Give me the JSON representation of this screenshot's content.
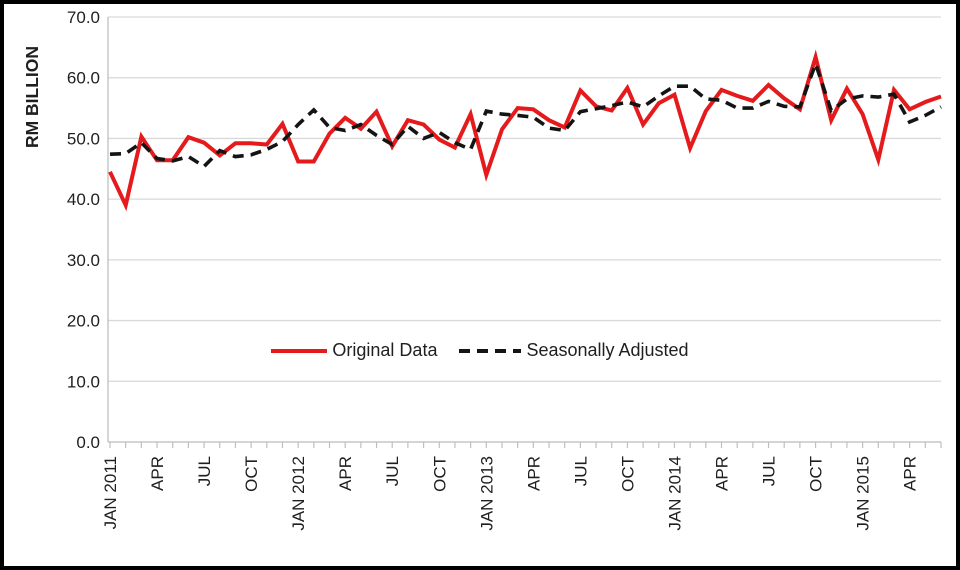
{
  "chart_data": {
    "type": "line",
    "title": "",
    "ylabel": "RM BILLION",
    "xlabel": "",
    "ylim": [
      0,
      70
    ],
    "y_tick_step": 10,
    "y_tick_labels": [
      "0.0",
      "10.0",
      "20.0",
      "30.0",
      "40.0",
      "50.0",
      "60.0",
      "70.0"
    ],
    "n_points": 54,
    "x_start": "JAN 2011",
    "x_end": "JUN 2015",
    "x_tick_labels": [
      {
        "month_index": 0,
        "label": "JAN 2011"
      },
      {
        "month_index": 3,
        "label": "APR"
      },
      {
        "month_index": 6,
        "label": "JUL"
      },
      {
        "month_index": 9,
        "label": "OCT"
      },
      {
        "month_index": 12,
        "label": "JAN 2012"
      },
      {
        "month_index": 15,
        "label": "APR"
      },
      {
        "month_index": 18,
        "label": "JUL"
      },
      {
        "month_index": 21,
        "label": "OCT"
      },
      {
        "month_index": 24,
        "label": "JAN 2013"
      },
      {
        "month_index": 27,
        "label": "APR"
      },
      {
        "month_index": 30,
        "label": "JUL"
      },
      {
        "month_index": 33,
        "label": "OCT"
      },
      {
        "month_index": 36,
        "label": "JAN 2014"
      },
      {
        "month_index": 39,
        "label": "APR"
      },
      {
        "month_index": 42,
        "label": "JUL"
      },
      {
        "month_index": 45,
        "label": "OCT"
      },
      {
        "month_index": 48,
        "label": "JAN 2015"
      },
      {
        "month_index": 51,
        "label": "APR"
      }
    ],
    "grid": "horizontal",
    "grid_color": "#d9d9d9",
    "axis_color": "#bfbfbf",
    "legend_position": "center-middle",
    "series": [
      {
        "name": "Original Data",
        "color": "#e41a1c",
        "style": "solid",
        "values": [
          44.5,
          39.0,
          50.3,
          46.4,
          46.4,
          50.2,
          49.3,
          47.2,
          49.2,
          49.2,
          49.0,
          52.4,
          46.2,
          46.2,
          50.8,
          53.4,
          51.6,
          54.4,
          48.7,
          53.0,
          52.3,
          49.8,
          48.5,
          54.0,
          44.0,
          51.5,
          55.0,
          54.8,
          53.0,
          51.8,
          57.9,
          55.3,
          54.6,
          58.3,
          52.3,
          55.8,
          57.2,
          48.4,
          54.5,
          58.0,
          57.0,
          56.2,
          58.8,
          56.6,
          54.8,
          63.4,
          53.0,
          58.2,
          54.0,
          46.5,
          58.0,
          54.8,
          56.0,
          56.9
        ]
      },
      {
        "name": "Seasonally Adjusted",
        "color": "#141414",
        "style": "dashed",
        "values": [
          47.4,
          47.5,
          49.3,
          46.7,
          46.3,
          47.0,
          45.4,
          48.0,
          47.0,
          47.3,
          48.2,
          49.5,
          52.3,
          54.7,
          51.8,
          51.3,
          52.3,
          50.5,
          49.0,
          52.0,
          50.0,
          51.0,
          49.3,
          48.2,
          54.5,
          54.0,
          53.8,
          53.5,
          51.7,
          51.3,
          54.4,
          54.9,
          55.4,
          56.0,
          55.2,
          57.0,
          58.6,
          58.6,
          56.5,
          56.3,
          55.0,
          55.0,
          56.1,
          55.3,
          55.2,
          62.3,
          54.6,
          56.5,
          57.0,
          56.8,
          57.3,
          52.7,
          53.8,
          55.2
        ]
      }
    ]
  },
  "legend": {
    "original_label": "Original Data",
    "adjusted_label": "Seasonally Adjusted"
  }
}
